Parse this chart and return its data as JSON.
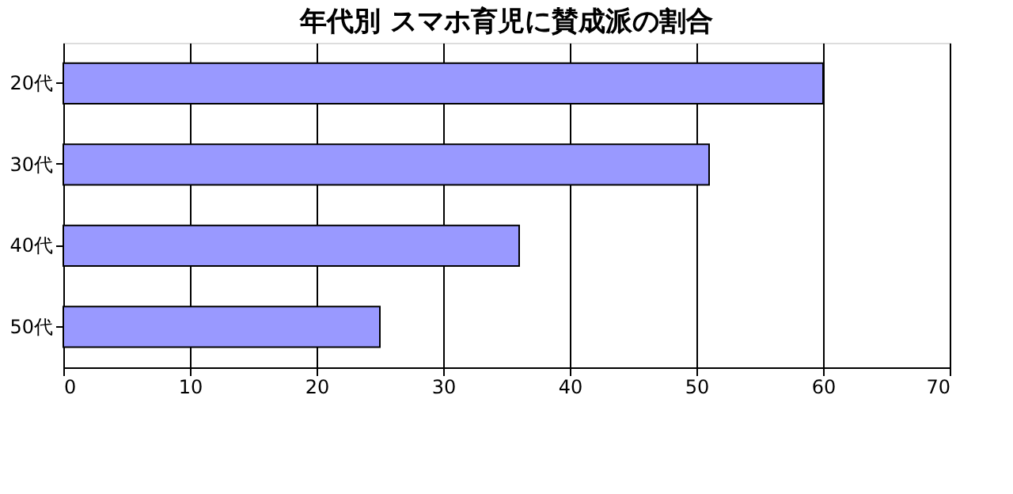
{
  "chart_data": {
    "type": "bar",
    "orientation": "horizontal",
    "title": "年代別 スマホ育児に賛成派の割合",
    "categories": [
      "20代",
      "30代",
      "40代",
      "50代"
    ],
    "values": [
      60,
      51,
      36,
      25
    ],
    "color": "#9999ff",
    "xlim": [
      0,
      70
    ],
    "xticks": [
      0,
      10,
      20,
      30,
      40,
      50,
      60,
      70
    ],
    "grid": "x"
  }
}
